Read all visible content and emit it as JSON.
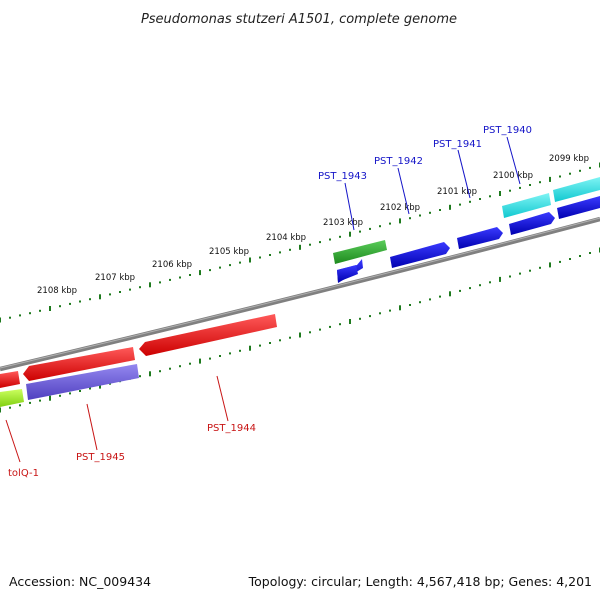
{
  "title": "Pseudomonas stutzeri A1501, complete genome",
  "footer": {
    "accession": "Accession: NC_009434",
    "summary": "Topology: circular; Length: 4,567,418 bp; Genes: 4,201"
  },
  "scale_labels": [
    "2108 kbp",
    "2107 kbp",
    "2106 kbp",
    "2105 kbp",
    "2104 kbp",
    "2103 kbp",
    "2102 kbp",
    "2101 kbp",
    "2100 kbp",
    "2099 kbp"
  ],
  "genes_top": [
    "PST_1943",
    "PST_1942",
    "PST_1941",
    "PST_1940"
  ],
  "genes_bottom": [
    "tolQ-1",
    "PST_1945",
    "PST_1944"
  ],
  "colors": {
    "backbone": "#808080",
    "tick": "#1e7a1e",
    "forward_label": "#1515c8",
    "reverse_label": "#c81515",
    "red_gene": "#ee1c1c",
    "blue_gene": "#1414e0",
    "cyan_gene": "#1ee0e0",
    "green_gene": "#35b535",
    "lime_gene": "#a8f020",
    "purple_gene": "#7060d8"
  }
}
